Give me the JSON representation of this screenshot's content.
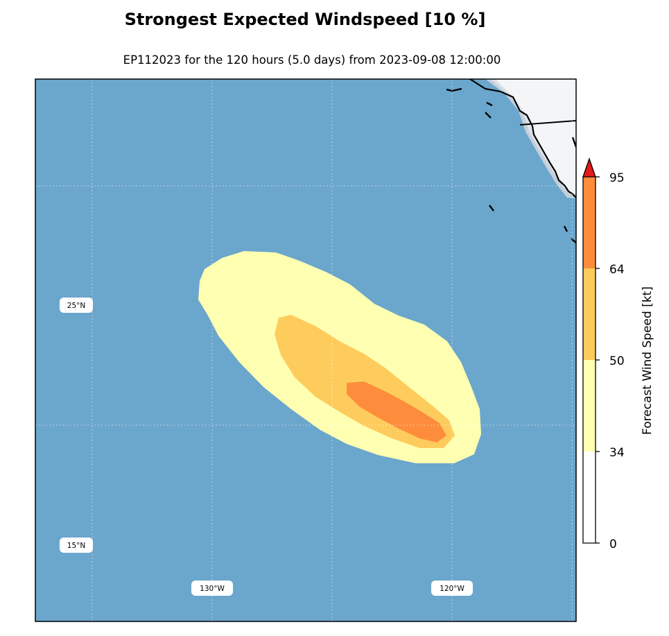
{
  "title": "Strongest Expected Windspeed [10 %]",
  "subtitle": "EP112023 for the 120 hours (5.0 days) from 2023-09-08 12:00:00",
  "map": {
    "ocean_color": "#6ba6cc",
    "land_color": "#f4f5f7",
    "lat_labels": [
      "25°N",
      "15°N"
    ],
    "lon_labels": [
      "130°W",
      "120°W"
    ]
  },
  "colorbar": {
    "label": "Forecast Wind Speed [kt]",
    "ticks": [
      "95",
      "64",
      "50",
      "34",
      "0"
    ],
    "bins": [
      {
        "from": 0,
        "to": 34,
        "color": "#ffffff"
      },
      {
        "from": 34,
        "to": 50,
        "color": "#ffffb2"
      },
      {
        "from": 50,
        "to": 64,
        "color": "#fecc5c"
      },
      {
        "from": 64,
        "to": 95,
        "color": "#fd8d3c"
      },
      {
        "from": 95,
        "to": null,
        "color": "#e31a1c"
      }
    ]
  },
  "contours": [
    {
      "threshold_kt": 34,
      "color": "#ffffb2"
    },
    {
      "threshold_kt": 50,
      "color": "#fecc5c"
    },
    {
      "threshold_kt": 64,
      "color": "#fd8d3c"
    }
  ]
}
